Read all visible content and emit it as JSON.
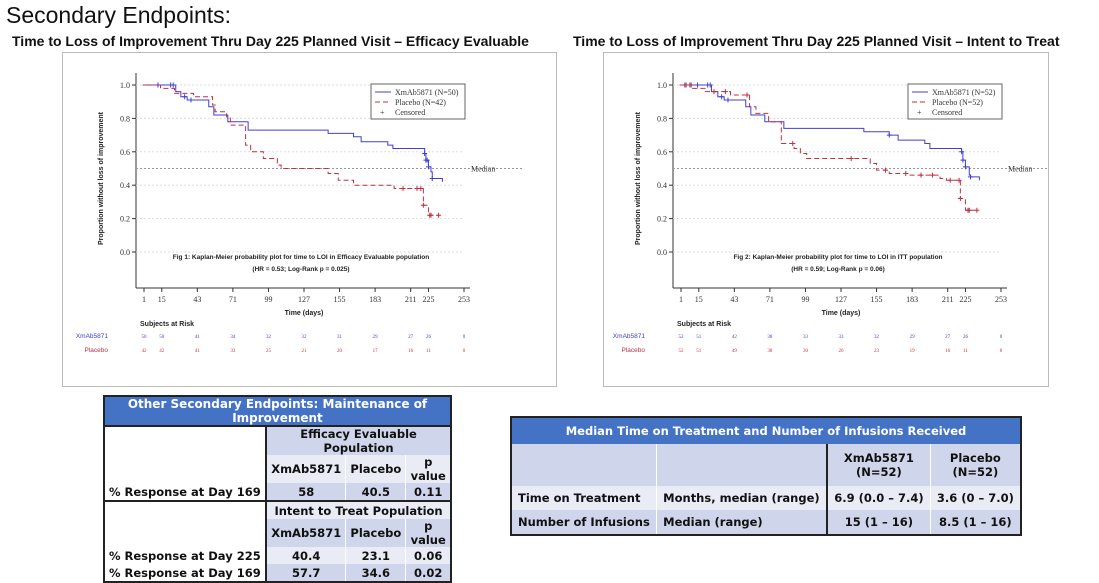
{
  "page": {
    "title": "Secondary Endpoints:",
    "subtitle_left": "Time to Loss of Improvement Thru Day 225 Planned Visit – Efficacy Evaluable",
    "subtitle_right": "Time to Loss of Improvement Thru Day 225 Planned Visit – Intent to Treat"
  },
  "colors": {
    "xmab": "#4040d0",
    "placebo": "#c03040",
    "median_line": "#999999",
    "table_header": "#4472c4"
  },
  "chart_data": [
    {
      "type": "line",
      "subtype": "kaplan-meier step",
      "ylabel": "Proportion without loss of improvement",
      "xlabel": "Time (days)",
      "ylim": [
        0,
        1
      ],
      "yticks": [
        "0.0",
        "0.2",
        "0.4",
        "0.6",
        "0.8",
        "1.0"
      ],
      "xticks": [
        1,
        15,
        43,
        71,
        99,
        127,
        155,
        183,
        211,
        225,
        253
      ],
      "reference_line": {
        "y": 0.5,
        "label": "Median"
      },
      "legend": {
        "position": "top-right",
        "entries": [
          "XmAb5871 (N=50)",
          "Placebo  (N=42)",
          "Censored"
        ],
        "censor_symbol": "+"
      },
      "caption": [
        "Fig 1: Kaplan-Meier probability plot for time to LOI in Efficacy Evaluable population",
        "(HR = 0.53; Log-Rank p = 0.025)"
      ],
      "series": [
        {
          "name": "XmAb5871",
          "style": "solid",
          "x": [
            0,
            26,
            30,
            35,
            52,
            56,
            67,
            83,
            146,
            166,
            172,
            193,
            197,
            222,
            223,
            225,
            227,
            228,
            236
          ],
          "y": [
            1.0,
            0.96,
            0.93,
            0.91,
            0.87,
            0.82,
            0.78,
            0.73,
            0.71,
            0.69,
            0.66,
            0.64,
            0.62,
            0.59,
            0.55,
            0.51,
            0.48,
            0.44,
            0.42
          ],
          "censored_x": [
            12,
            22,
            24,
            33,
            38,
            222,
            223,
            224,
            225,
            228
          ]
        },
        {
          "name": "Placebo",
          "style": "dashed",
          "x": [
            0,
            14,
            25,
            40,
            55,
            57,
            66,
            69,
            81,
            85,
            95,
            106,
            109,
            146,
            154,
            166,
            198,
            221,
            225,
            233
          ],
          "y": [
            1.0,
            0.98,
            0.95,
            0.93,
            0.88,
            0.84,
            0.81,
            0.76,
            0.64,
            0.6,
            0.56,
            0.52,
            0.5,
            0.47,
            0.43,
            0.4,
            0.38,
            0.28,
            0.22,
            0.22
          ],
          "censored_x": [
            205,
            216,
            219,
            221,
            226,
            227,
            233
          ]
        }
      ],
      "risk_table": {
        "title": "Subjects at Risk",
        "rows": [
          {
            "label": "XmAb5871",
            "values": [
              "50",
              "50",
              "41",
              "34",
              "32",
              "32",
              "31",
              "29",
              "27",
              "26",
              "0"
            ]
          },
          {
            "label": "Placebo",
            "values": [
              "42",
              "42",
              "41",
              "33",
              "25",
              "21",
              "20",
              "17",
              "16",
              "11",
              "0"
            ]
          }
        ]
      }
    },
    {
      "type": "line",
      "subtype": "kaplan-meier step",
      "ylabel": "Proportion without loss of improvement",
      "xlabel": "Time (days)",
      "ylim": [
        0,
        1
      ],
      "yticks": [
        "0.0",
        "0.2",
        "0.4",
        "0.6",
        "0.8",
        "1.0"
      ],
      "xticks": [
        1,
        15,
        43,
        71,
        99,
        127,
        155,
        183,
        211,
        225,
        253
      ],
      "reference_line": {
        "y": 0.5,
        "label": "Median"
      },
      "legend": {
        "position": "top-right",
        "entries": [
          "XmAb5871 (N=52)",
          "Placebo  (N=52)",
          "Censored"
        ],
        "censor_symbol": "+"
      },
      "caption": [
        "Fig 2: Kaplan-Meier probability plot for time to LOI in ITT population",
        "(HR = 0.59; Log-Rank p = 0.06)"
      ],
      "series": [
        {
          "name": "XmAb5871",
          "style": "solid",
          "x": [
            0,
            25,
            30,
            35,
            52,
            56,
            67,
            82,
            145,
            165,
            172,
            193,
            197,
            222,
            223,
            225,
            228,
            229,
            236
          ],
          "y": [
            1.0,
            0.96,
            0.93,
            0.91,
            0.87,
            0.82,
            0.78,
            0.74,
            0.72,
            0.7,
            0.67,
            0.65,
            0.62,
            0.6,
            0.55,
            0.51,
            0.46,
            0.45,
            0.43
          ],
          "censored_x": [
            5,
            9,
            14,
            22,
            24,
            33,
            38,
            165,
            222,
            223,
            225,
            229
          ]
        },
        {
          "name": "Placebo",
          "style": "dashed",
          "x": [
            0,
            10,
            20,
            40,
            55,
            60,
            70,
            80,
            90,
            95,
            100,
            150,
            155,
            165,
            180,
            205,
            210,
            221,
            225,
            234
          ],
          "y": [
            1.0,
            0.98,
            0.96,
            0.94,
            0.87,
            0.83,
            0.78,
            0.65,
            0.62,
            0.59,
            0.56,
            0.53,
            0.49,
            0.47,
            0.46,
            0.44,
            0.43,
            0.32,
            0.25,
            0.25
          ],
          "censored_x": [
            4,
            8,
            27,
            36,
            53,
            89,
            135,
            162,
            178,
            190,
            199,
            213,
            220,
            221,
            227,
            228,
            234
          ]
        }
      ],
      "risk_table": {
        "title": "Subjects at Risk",
        "rows": [
          {
            "label": "XmAb5871",
            "values": [
              "52",
              "51",
              "42",
              "38",
              "33",
              "33",
              "32",
              "29",
              "27",
              "26",
              "0"
            ]
          },
          {
            "label": "Placebo",
            "values": [
              "52",
              "51",
              "49",
              "38",
              "30",
              "26",
              "23",
              "19",
              "16",
              "11",
              "0"
            ]
          }
        ]
      }
    }
  ],
  "table_maintenance": {
    "title": "Other Secondary Endpoints: Maintenance of Improvement",
    "ee": {
      "population": "Efficacy Evaluable Population",
      "cols": [
        "XmAb5871",
        "Placebo",
        "p value"
      ],
      "rows": [
        {
          "label": "% Response at Day 169",
          "values": [
            "58",
            "40.5",
            "0.11"
          ]
        }
      ]
    },
    "itt": {
      "population": "Intent to Treat Population",
      "cols": [
        "XmAb5871",
        "Placebo",
        "p value"
      ],
      "rows": [
        {
          "label": "% Response at Day 225",
          "values": [
            "40.4",
            "23.1",
            "0.06"
          ]
        },
        {
          "label": "% Response at Day 169",
          "values": [
            "57.7",
            "34.6",
            "0.02"
          ]
        }
      ]
    }
  },
  "table_treatment": {
    "title": "Median Time on Treatment and Number of Infusions Received",
    "cols": [
      "XmAb5871\n(N=52)",
      "Placebo\n(N=52)"
    ],
    "rows": [
      {
        "label": "Time on Treatment",
        "measure": "Months, median (range)",
        "values": [
          "6.9 (0.0 – 7.4)",
          "3.6 (0 – 7.0)"
        ]
      },
      {
        "label": "Number of Infusions",
        "measure": "Median (range)",
        "values": [
          "15 (1 – 16)",
          "8.5 (1 – 16)"
        ]
      }
    ]
  }
}
